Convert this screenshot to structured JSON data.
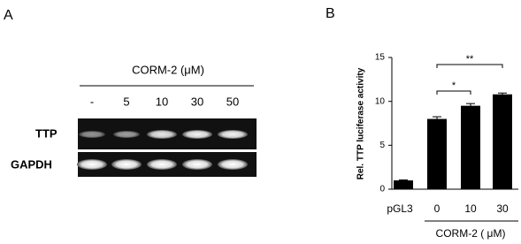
{
  "panel_a": {
    "label": "A",
    "treatment": "CORM-2 (μM)",
    "lanes": [
      "-",
      "5",
      "10",
      "30",
      "50"
    ],
    "rows": [
      "TTP",
      "GAPDH"
    ]
  },
  "chart_data": {
    "type": "bar",
    "panel_label": "B",
    "y_label": "Rel. TTP luciferase activity",
    "categories": [
      "pGL3",
      "0",
      "10",
      "30"
    ],
    "x_group_label": "CORM-2 ( μM)",
    "values": [
      1.0,
      8.0,
      9.5,
      10.8
    ],
    "errors": [
      0.05,
      0.25,
      0.25,
      0.15
    ],
    "color": "#000000",
    "ylim": [
      0,
      15
    ],
    "yticks": [
      0,
      5,
      10,
      15
    ],
    "annotations": [
      "*",
      "**"
    ]
  }
}
